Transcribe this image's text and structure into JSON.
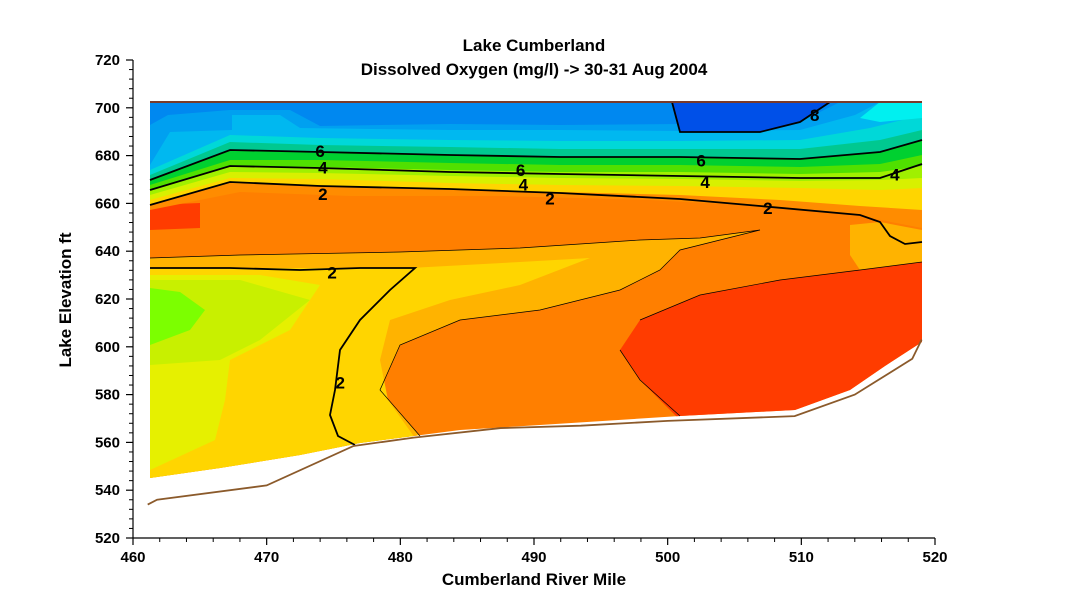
{
  "chart_data": {
    "type": "contour",
    "title": "Lake Cumberland",
    "subtitle": "Dissolved Oxygen (mg/l) -> 30-31 Aug 2004",
    "xlabel": "Cumberland River Mile",
    "ylabel": "Lake  Elevation  ft",
    "xlim": [
      460,
      520
    ],
    "ylim": [
      520,
      720
    ],
    "xticks": [
      460,
      470,
      480,
      490,
      500,
      510,
      520
    ],
    "yticks": [
      520,
      540,
      560,
      580,
      600,
      620,
      640,
      660,
      680,
      700,
      720
    ],
    "x_tick_labels": [
      "460",
      "470",
      "480",
      "490",
      "500",
      "510",
      "520"
    ],
    "y_tick_labels": [
      "520",
      "540",
      "560",
      "580",
      "600",
      "620",
      "640",
      "660",
      "680",
      "700",
      "720"
    ],
    "water_surface_elevation": 703,
    "bottom_profile": [
      {
        "mile": 461.1,
        "elev": 534
      },
      {
        "mile": 461.8,
        "elev": 536
      },
      {
        "mile": 470.0,
        "elev": 542
      },
      {
        "mile": 476.5,
        "elev": 558.5
      },
      {
        "mile": 481.0,
        "elev": 562
      },
      {
        "mile": 487.5,
        "elev": 566
      },
      {
        "mile": 493.5,
        "elev": 567
      },
      {
        "mile": 500.0,
        "elev": 569
      },
      {
        "mile": 509.5,
        "elev": 571
      },
      {
        "mile": 514.0,
        "elev": 580
      },
      {
        "mile": 518.3,
        "elev": 595
      },
      {
        "mile": 519.0,
        "elev": 603
      }
    ],
    "contour_labels": [
      {
        "text": "8",
        "mile": 511,
        "elev": 697
      },
      {
        "text": "6",
        "mile": 474,
        "elev": 682
      },
      {
        "text": "4",
        "mile": 474.2,
        "elev": 675
      },
      {
        "text": "2",
        "mile": 474.2,
        "elev": 664
      },
      {
        "text": "6",
        "mile": 489,
        "elev": 674
      },
      {
        "text": "4",
        "mile": 489.2,
        "elev": 668
      },
      {
        "text": "2",
        "mile": 491.2,
        "elev": 662
      },
      {
        "text": "6",
        "mile": 502.5,
        "elev": 678
      },
      {
        "text": "4",
        "mile": 502.8,
        "elev": 669
      },
      {
        "text": "2",
        "mile": 507.5,
        "elev": 658
      },
      {
        "text": "4",
        "mile": 517,
        "elev": 672
      },
      {
        "text": "2",
        "mile": 474.9,
        "elev": 631
      },
      {
        "text": "2",
        "mile": 475.5,
        "elev": 585
      }
    ]
  }
}
